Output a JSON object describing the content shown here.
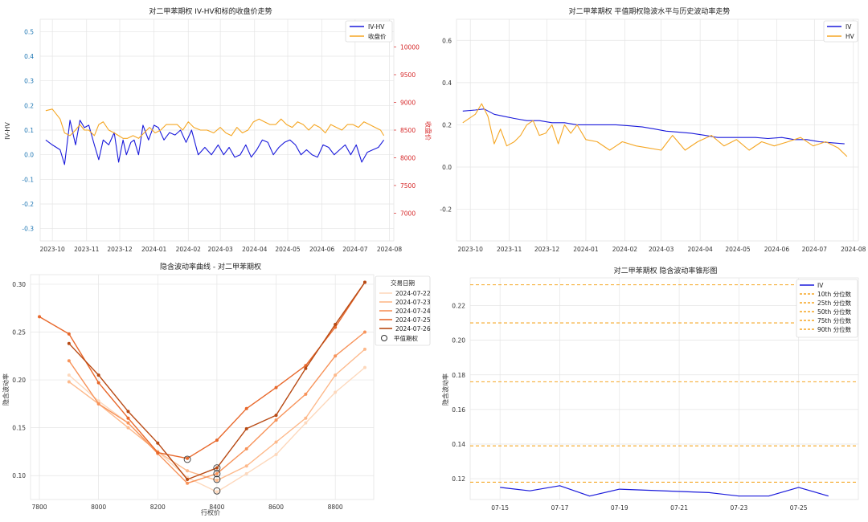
{
  "charts": {
    "c1": {
      "title": "对二甲苯期权 IV-HV和标的收盘价走势",
      "ylabel_left": "IV-HV",
      "ylabel_right": "收盘价",
      "left_ticks": [
        "0.5",
        "0.4",
        "0.3",
        "0.2",
        "0.1",
        "0.0",
        "-0.1",
        "-0.2",
        "-0.3"
      ],
      "right_ticks": [
        "10000",
        "9500",
        "9000",
        "8500",
        "8000",
        "7500",
        "7000"
      ],
      "x_ticks": [
        "2023-10",
        "2023-11",
        "2023-12",
        "2024-01",
        "2024-02",
        "2024-03",
        "2024-04",
        "2024-05",
        "2024-06",
        "2024-07",
        "2024-08"
      ],
      "legend": [
        "IV-HV",
        "收盘价"
      ]
    },
    "c2": {
      "title": "对二甲苯期权 平值期权隐波水平与历史波动率走势",
      "y_ticks": [
        "0.6",
        "0.4",
        "0.2",
        "0.0",
        "-0.2"
      ],
      "x_ticks": [
        "2023-10",
        "2023-11",
        "2023-12",
        "2024-01",
        "2024-02",
        "2024-03",
        "2024-04",
        "2024-05",
        "2024-06",
        "2024-07",
        "2024-08"
      ],
      "legend": [
        "IV",
        "HV"
      ]
    },
    "c3": {
      "title": "隐含波动率曲线 - 对二甲苯期权",
      "xlabel": "行权价",
      "ylabel": "隐含波动率",
      "y_ticks": [
        "0.30",
        "0.25",
        "0.20",
        "0.15",
        "0.10"
      ],
      "x_ticks": [
        "7800",
        "8000",
        "8200",
        "8400",
        "8600",
        "8800"
      ],
      "legend_title": "交易日期",
      "legend": [
        "2024-07-22",
        "2024-07-23",
        "2024-07-24",
        "2024-07-25",
        "2024-07-26"
      ],
      "legend_atm": "平值期权"
    },
    "c4": {
      "title": "对二甲苯期权 隐含波动率锥形图",
      "ylabel": "隐含波动率",
      "y_ticks": [
        "0.22",
        "0.20",
        "0.18",
        "0.16",
        "0.14",
        "0.12"
      ],
      "x_ticks": [
        "07-15",
        "07-17",
        "07-19",
        "07-21",
        "07-23",
        "07-25"
      ],
      "legend": [
        "IV",
        "10th 分位数",
        "25th 分位数",
        "50th 分位数",
        "75th 分位数",
        "90th 分位数"
      ]
    }
  },
  "chart_data": [
    {
      "type": "line",
      "title": "对二甲苯期权 IV-HV和标的收盘价走势",
      "x_range": [
        "2023-09-20",
        "2024-08-05"
      ],
      "ylim_left": [
        -0.35,
        0.55
      ],
      "ylim_right": [
        6500,
        10500
      ],
      "series": [
        {
          "name": "IV-HV",
          "axis": "left",
          "color": "#1a1adb",
          "x": [
            "2023-09-25",
            "2023-10-01",
            "2023-10-08",
            "2023-10-12",
            "2023-10-17",
            "2023-10-22",
            "2023-10-26",
            "2023-10-30",
            "2023-11-03",
            "2023-11-08",
            "2023-11-12",
            "2023-11-16",
            "2023-11-21",
            "2023-11-26",
            "2023-11-30",
            "2023-12-04",
            "2023-12-07",
            "2023-12-11",
            "2023-12-14",
            "2023-12-18",
            "2023-12-22",
            "2023-12-27",
            "2024-01-01",
            "2024-01-05",
            "2024-01-10",
            "2024-01-15",
            "2024-01-20",
            "2024-01-25",
            "2024-01-30",
            "2024-02-04",
            "2024-02-10",
            "2024-02-16",
            "2024-02-22",
            "2024-02-28",
            "2024-03-04",
            "2024-03-09",
            "2024-03-14",
            "2024-03-19",
            "2024-03-24",
            "2024-03-29",
            "2024-04-03",
            "2024-04-08",
            "2024-04-13",
            "2024-04-18",
            "2024-04-23",
            "2024-04-28",
            "2024-05-03",
            "2024-05-08",
            "2024-05-13",
            "2024-05-18",
            "2024-05-23",
            "2024-05-28",
            "2024-06-02",
            "2024-06-07",
            "2024-06-12",
            "2024-06-17",
            "2024-06-22",
            "2024-06-27",
            "2024-07-02",
            "2024-07-07",
            "2024-07-12",
            "2024-07-17",
            "2024-07-22",
            "2024-07-27"
          ],
          "y": [
            0.06,
            0.04,
            0.02,
            -0.04,
            0.14,
            0.04,
            0.14,
            0.11,
            0.12,
            0.04,
            -0.02,
            0.06,
            0.04,
            0.09,
            -0.03,
            0.06,
            0.0,
            0.05,
            0.06,
            0.0,
            0.12,
            0.06,
            0.12,
            0.11,
            0.06,
            0.09,
            0.08,
            0.1,
            0.05,
            0.1,
            0.0,
            0.03,
            0.0,
            0.04,
            0.0,
            0.03,
            -0.01,
            0.0,
            0.04,
            -0.01,
            0.02,
            0.06,
            0.05,
            0.0,
            0.03,
            0.05,
            0.06,
            0.04,
            0.0,
            0.02,
            0.0,
            -0.01,
            0.04,
            0.03,
            0.0,
            0.02,
            0.04,
            0.0,
            0.04,
            -0.03,
            0.01,
            0.02,
            0.03,
            0.06
          ]
        },
        {
          "name": "收盘价",
          "axis": "right",
          "color": "#f5a623",
          "x": [
            "2023-09-25",
            "2023-10-01",
            "2023-10-08",
            "2023-10-12",
            "2023-10-17",
            "2023-10-22",
            "2023-10-26",
            "2023-10-30",
            "2023-11-03",
            "2023-11-08",
            "2023-11-12",
            "2023-11-16",
            "2023-11-21",
            "2023-11-26",
            "2023-11-30",
            "2023-12-04",
            "2023-12-08",
            "2023-12-13",
            "2023-12-18",
            "2023-12-23",
            "2023-12-28",
            "2024-01-02",
            "2024-01-07",
            "2024-01-12",
            "2024-01-17",
            "2024-01-22",
            "2024-01-27",
            "2024-02-01",
            "2024-02-06",
            "2024-02-12",
            "2024-02-18",
            "2024-02-24",
            "2024-03-01",
            "2024-03-06",
            "2024-03-11",
            "2024-03-16",
            "2024-03-21",
            "2024-03-26",
            "2024-03-31",
            "2024-04-05",
            "2024-04-10",
            "2024-04-15",
            "2024-04-20",
            "2024-04-25",
            "2024-04-30",
            "2024-05-05",
            "2024-05-10",
            "2024-05-15",
            "2024-05-20",
            "2024-05-25",
            "2024-05-30",
            "2024-06-04",
            "2024-06-09",
            "2024-06-14",
            "2024-06-19",
            "2024-06-24",
            "2024-06-29",
            "2024-07-04",
            "2024-07-09",
            "2024-07-14",
            "2024-07-19",
            "2024-07-24",
            "2024-07-27"
          ],
          "y": [
            8850,
            8880,
            8700,
            8450,
            8400,
            8500,
            8600,
            8500,
            8500,
            8400,
            8600,
            8650,
            8500,
            8450,
            8400,
            8350,
            8350,
            8400,
            8350,
            8450,
            8550,
            8450,
            8500,
            8600,
            8600,
            8600,
            8500,
            8650,
            8550,
            8500,
            8500,
            8450,
            8550,
            8450,
            8400,
            8550,
            8450,
            8500,
            8650,
            8700,
            8650,
            8600,
            8600,
            8700,
            8600,
            8550,
            8650,
            8600,
            8500,
            8600,
            8550,
            8450,
            8600,
            8550,
            8500,
            8600,
            8600,
            8550,
            8650,
            8600,
            8550,
            8500,
            8400
          ]
        }
      ]
    },
    {
      "type": "line",
      "title": "对二甲苯期权 平值期权隐波水平与历史波动率走势",
      "x_range": [
        "2023-09-20",
        "2024-08-05"
      ],
      "ylim": [
        -0.35,
        0.7
      ],
      "series": [
        {
          "name": "IV",
          "color": "#1a1adb",
          "x": [
            "2023-09-25",
            "2023-10-05",
            "2023-10-12",
            "2023-10-20",
            "2023-10-28",
            "2023-11-05",
            "2023-11-15",
            "2023-11-25",
            "2023-12-05",
            "2023-12-15",
            "2023-12-25",
            "2024-01-05",
            "2024-01-15",
            "2024-01-25",
            "2024-02-05",
            "2024-02-15",
            "2024-02-25",
            "2024-03-05",
            "2024-03-15",
            "2024-03-25",
            "2024-04-05",
            "2024-04-15",
            "2024-04-25",
            "2024-05-05",
            "2024-05-15",
            "2024-05-25",
            "2024-06-05",
            "2024-06-15",
            "2024-06-25",
            "2024-07-05",
            "2024-07-15",
            "2024-07-25"
          ],
          "y": [
            0.265,
            0.27,
            0.275,
            0.25,
            0.24,
            0.23,
            0.22,
            0.22,
            0.21,
            0.21,
            0.2,
            0.2,
            0.2,
            0.2,
            0.195,
            0.19,
            0.18,
            0.17,
            0.165,
            0.16,
            0.15,
            0.14,
            0.14,
            0.14,
            0.14,
            0.135,
            0.14,
            0.13,
            0.13,
            0.12,
            0.115,
            0.11
          ]
        },
        {
          "name": "HV",
          "color": "#f5a623",
          "x": [
            "2023-09-25",
            "2023-10-05",
            "2023-10-10",
            "2023-10-15",
            "2023-10-20",
            "2023-10-25",
            "2023-10-30",
            "2023-11-05",
            "2023-11-10",
            "2023-11-15",
            "2023-11-20",
            "2023-11-25",
            "2023-11-30",
            "2023-12-05",
            "2023-12-10",
            "2023-12-15",
            "2023-12-20",
            "2023-12-25",
            "2024-01-01",
            "2024-01-10",
            "2024-01-20",
            "2024-01-30",
            "2024-02-10",
            "2024-02-20",
            "2024-03-01",
            "2024-03-10",
            "2024-03-20",
            "2024-03-30",
            "2024-04-10",
            "2024-04-20",
            "2024-04-30",
            "2024-05-10",
            "2024-05-20",
            "2024-05-30",
            "2024-06-10",
            "2024-06-20",
            "2024-06-30",
            "2024-07-10",
            "2024-07-20",
            "2024-07-27"
          ],
          "y": [
            0.21,
            0.25,
            0.3,
            0.24,
            0.11,
            0.18,
            0.1,
            0.12,
            0.15,
            0.2,
            0.22,
            0.15,
            0.16,
            0.2,
            0.11,
            0.2,
            0.16,
            0.2,
            0.13,
            0.12,
            0.08,
            0.12,
            0.1,
            0.09,
            0.08,
            0.15,
            0.08,
            0.12,
            0.15,
            0.1,
            0.13,
            0.08,
            0.12,
            0.1,
            0.12,
            0.14,
            0.1,
            0.12,
            0.09,
            0.05
          ]
        }
      ]
    },
    {
      "type": "line",
      "title": "隐含波动率曲线 - 对二甲苯期权",
      "xlabel": "行权价",
      "ylabel": "隐含波动率",
      "xlim": [
        7770,
        8930
      ],
      "ylim": [
        0.075,
        0.31
      ],
      "series": [
        {
          "name": "2024-07-22",
          "color": "#fdd8bc",
          "x": [
            7900,
            8000,
            8100,
            8200,
            8300,
            8400,
            8500,
            8600,
            8700,
            8800,
            8900
          ],
          "y": [
            0.205,
            0.178,
            0.155,
            0.125,
            0.098,
            0.083,
            0.102,
            0.122,
            0.155,
            0.187,
            0.213
          ],
          "atm": [
            8400,
            0.084
          ]
        },
        {
          "name": "2024-07-23",
          "color": "#fdb98b",
          "x": [
            7900,
            8000,
            8100,
            8200,
            8300,
            8400,
            8500,
            8600,
            8700,
            8800,
            8900
          ],
          "y": [
            0.198,
            0.175,
            0.15,
            0.125,
            0.105,
            0.095,
            0.11,
            0.135,
            0.16,
            0.205,
            0.232
          ],
          "atm": [
            8400,
            0.096
          ]
        },
        {
          "name": "2024-07-24",
          "color": "#f7935a",
          "x": [
            7900,
            8000,
            8100,
            8200,
            8300,
            8400,
            8500,
            8600,
            8700,
            8800,
            8900
          ],
          "y": [
            0.22,
            0.175,
            0.155,
            0.123,
            0.092,
            0.102,
            0.128,
            0.158,
            0.185,
            0.225,
            0.25
          ],
          "atm": [
            8400,
            0.102
          ]
        },
        {
          "name": "2024-07-25",
          "color": "#e8682b",
          "x": [
            7800,
            7900,
            8000,
            8100,
            8200,
            8300,
            8400,
            8500,
            8600,
            8700,
            8800,
            8900
          ],
          "y": [
            0.266,
            0.248,
            0.197,
            0.16,
            0.124,
            0.118,
            0.137,
            0.17,
            0.192,
            0.215,
            0.255,
            0.302
          ],
          "atm": [
            8300,
            0.117
          ]
        },
        {
          "name": "2024-07-26",
          "color": "#b84a14",
          "x": [
            7900,
            8000,
            8100,
            8200,
            8300,
            8400,
            8500,
            8600,
            8700,
            8800,
            8900
          ],
          "y": [
            0.238,
            0.205,
            0.167,
            0.134,
            0.096,
            0.108,
            0.149,
            0.163,
            0.212,
            0.258,
            0.302
          ],
          "atm": [
            8400,
            0.108
          ]
        }
      ]
    },
    {
      "type": "line",
      "title": "对二甲苯期权 隐含波动率锥形图",
      "ylabel": "隐含波动率",
      "ylim": [
        0.108,
        0.236
      ],
      "series": [
        {
          "name": "IV",
          "color": "#1a1adb",
          "x": [
            "07-15",
            "07-16",
            "07-17",
            "07-18",
            "07-19",
            "07-22",
            "07-23",
            "07-24",
            "07-25",
            "07-26"
          ],
          "y": [
            0.115,
            0.113,
            0.116,
            0.11,
            0.114,
            0.112,
            0.11,
            0.11,
            0.115,
            0.11
          ]
        }
      ],
      "quantiles": [
        {
          "name": "10th 分位数",
          "value": 0.118
        },
        {
          "name": "25th 分位数",
          "value": 0.139
        },
        {
          "name": "50th 分位数",
          "value": 0.176
        },
        {
          "name": "75th 分位数",
          "value": 0.21
        },
        {
          "name": "90th 分位数",
          "value": 0.232
        }
      ]
    }
  ]
}
